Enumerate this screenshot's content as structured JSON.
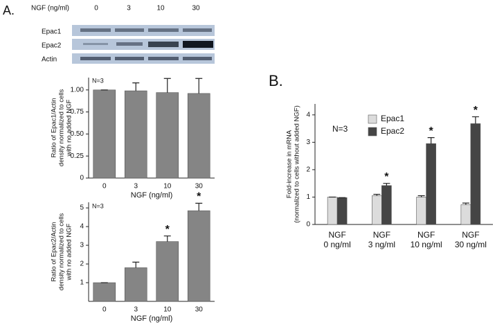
{
  "panels": {
    "a": "A.",
    "b": "B."
  },
  "blot": {
    "dose_label": "NGF (ng/ml)",
    "lanes": [
      "0",
      "3",
      "10",
      "30"
    ],
    "rows": [
      "Epac1",
      "Epac2",
      "Actin"
    ]
  },
  "chart_data": [
    {
      "type": "bar",
      "ylabel": [
        "Ratio of  Epac1/Actin",
        "density normalized to cells",
        "with no added NGF"
      ],
      "xlabel": "NGF (ng/ml)",
      "annotation": "N=3",
      "categories": [
        "0",
        "3",
        "10",
        "30"
      ],
      "values": [
        1.0,
        0.99,
        0.97,
        0.96
      ],
      "errors": [
        0,
        0.09,
        0.16,
        0.17
      ],
      "color": "#858585",
      "ylim": [
        0,
        1.14
      ],
      "yticks": [
        0,
        0.25,
        {
          "value": 0.5,
          "label": "0.50"
        },
        0.75,
        {
          "value": 1,
          "label": "1.00"
        }
      ]
    },
    {
      "type": "bar",
      "ylabel": [
        "Ratio of  Epac2/Actin",
        "density normalized to cells",
        "with no added NGF"
      ],
      "xlabel": "NGF (ng/ml)",
      "annotation": "N=3",
      "categories": [
        "0",
        "3",
        "10",
        "30"
      ],
      "values": [
        1.0,
        1.8,
        3.2,
        4.85
      ],
      "errors": [
        0,
        0.3,
        0.3,
        0.4
      ],
      "significance": [
        null,
        null,
        "*",
        "*"
      ],
      "color": "#858585",
      "ylim": [
        0,
        5.3
      ],
      "yticks": [
        1,
        2,
        3,
        4,
        5
      ]
    },
    {
      "type": "bar",
      "ylabel": [
        "Fold-increase in mRNA",
        "(normalized to cells without added NGF)"
      ],
      "annotation": "N=3",
      "categories": [
        "NGF\n0 ng/ml",
        "NGF\n3 ng/ml",
        "NGF\n10 ng/ml",
        "NGF\n30 ng/ml"
      ],
      "series": [
        {
          "name": "Epac1",
          "color": "#dcdcdc",
          "values": [
            1.0,
            1.05,
            1.0,
            0.72
          ],
          "errors": [
            0,
            0.05,
            0.05,
            0.06
          ]
        },
        {
          "name": "Epac2",
          "color": "#454545",
          "values": [
            0.98,
            1.42,
            2.95,
            3.68
          ],
          "errors": [
            0,
            0.08,
            0.22,
            0.25
          ],
          "significance": [
            null,
            "*",
            "*",
            "*"
          ]
        }
      ],
      "ylim": [
        0,
        4.4
      ],
      "yticks": [
        0,
        1,
        2,
        3,
        4
      ]
    }
  ]
}
